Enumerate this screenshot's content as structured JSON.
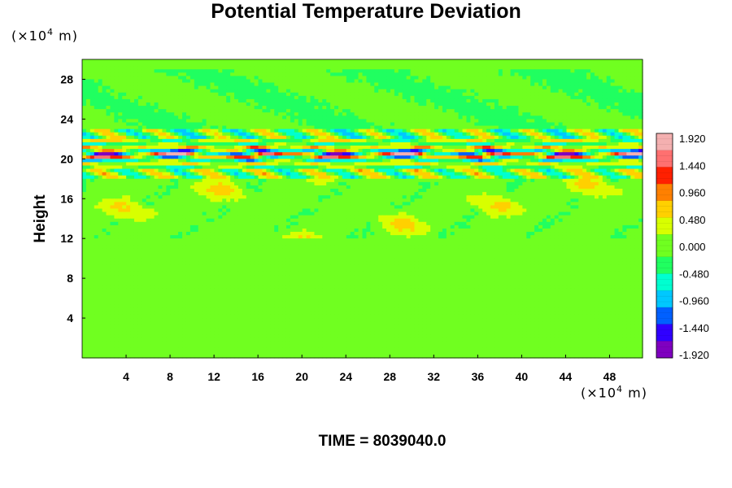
{
  "chart_data": {
    "type": "heatmap",
    "title": "Potential Temperature Deviation",
    "ylabel": "Height",
    "x_unit_prefix": "(×10",
    "x_unit_exp": "4",
    "x_unit_suffix": " m)",
    "y_unit_prefix": "(×10",
    "y_unit_exp": "4",
    "y_unit_suffix": " m)",
    "xlim": [
      0,
      51
    ],
    "ylim": [
      0,
      30
    ],
    "x_ticks": [
      "4",
      "8",
      "12",
      "16",
      "20",
      "24",
      "28",
      "32",
      "36",
      "40",
      "44",
      "48"
    ],
    "x_tick_values": [
      4,
      8,
      12,
      16,
      20,
      24,
      28,
      32,
      36,
      40,
      44,
      48
    ],
    "y_ticks": [
      "4",
      "8",
      "12",
      "16",
      "20",
      "24",
      "28"
    ],
    "y_tick_values": [
      4,
      8,
      12,
      16,
      20,
      24,
      28
    ],
    "colorbar_ticks": [
      "1.920",
      "1.440",
      "0.960",
      "0.480",
      "0.000",
      "-0.480",
      "-0.960",
      "-1.440",
      "-1.920"
    ],
    "colorbar_range": [
      -1.92,
      1.92
    ],
    "colormap": [
      "#7f00c0",
      "#3000ff",
      "#0060ff",
      "#00c8ff",
      "#00ffd0",
      "#20ff60",
      "#70ff20",
      "#d8ff00",
      "#ffd000",
      "#ff8000",
      "#ff2000",
      "#ff7070",
      "#f4b0b0"
    ],
    "background_value": 0.0,
    "features": [
      {
        "description": "strong alternating band",
        "y_range": [
          19.5,
          21.5
        ],
        "amplitude": 1.92
      },
      {
        "description": "weak positive patches",
        "y_range": [
          12,
          18
        ],
        "amplitude": 0.6
      }
    ]
  },
  "footer": {
    "time_label": "TIME = 8039040.0"
  }
}
